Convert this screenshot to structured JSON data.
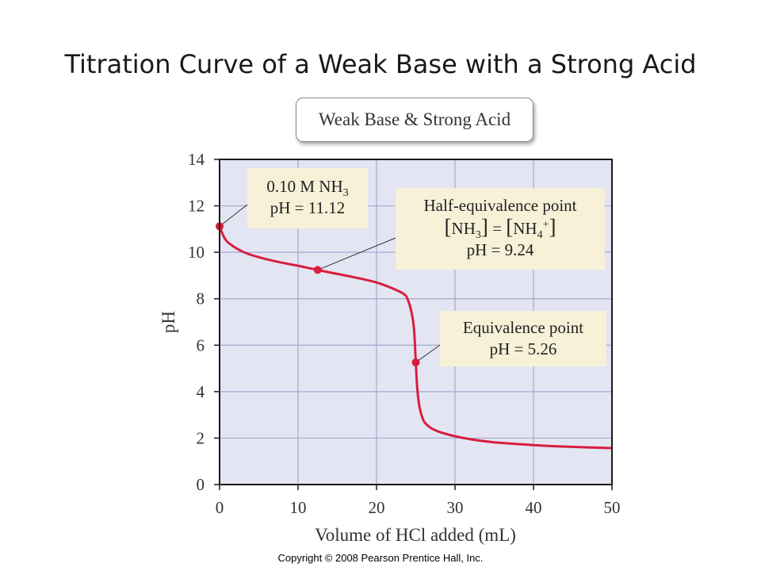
{
  "slide": {
    "title": "Titration Curve of a Weak Base with a Strong Acid",
    "badge": "Weak Base & Strong Acid",
    "copyright": "Copyright © 2008 Pearson Prentice Hall, Inc."
  },
  "annotations": {
    "start": {
      "line1_prefix": "0.10 M NH",
      "line1_sub": "3",
      "line2": "pH = 11.12"
    },
    "half": {
      "line1": "Half-equivalence point",
      "bracket_open": "[",
      "bracket_close": "]",
      "eq_left": "NH",
      "eq_left_sub": "3",
      "eq_mid": " = ",
      "eq_right": "NH",
      "eq_right_sub": "4",
      "eq_right_sup": "+",
      "line3": "pH = 9.24"
    },
    "equiv": {
      "line1": "Equivalence point",
      "line2": "pH = 5.26"
    }
  },
  "colors": {
    "curve": "#d81e3d",
    "plot_bg": "#e3e5f3",
    "grid": "#a5a9cc",
    "callout_bg": "#f7f1d8"
  },
  "chart_data": {
    "type": "line",
    "title": "",
    "xlabel": "Volume of HCl added (mL)",
    "ylabel": "pH",
    "xlim": [
      0,
      50
    ],
    "ylim": [
      0,
      14
    ],
    "xticks": [
      0,
      10,
      20,
      30,
      40,
      50
    ],
    "yticks": [
      0,
      2,
      4,
      6,
      8,
      10,
      12,
      14
    ],
    "grid": true,
    "series": [
      {
        "x": [
          0,
          0.5,
          1,
          2,
          3,
          4,
          5,
          6,
          8,
          10,
          12.5,
          15,
          17.5,
          20,
          22,
          23.5,
          24,
          24.5,
          24.8,
          25,
          25.2,
          25.5,
          26,
          26.5,
          27,
          28,
          30,
          32,
          35,
          40,
          45,
          50
        ],
        "y": [
          11.12,
          10.7,
          10.45,
          10.2,
          10.02,
          9.89,
          9.79,
          9.7,
          9.55,
          9.42,
          9.24,
          9.07,
          8.9,
          8.7,
          8.45,
          8.2,
          7.95,
          7.35,
          6.6,
          5.26,
          4.1,
          3.3,
          2.75,
          2.55,
          2.42,
          2.27,
          2.08,
          1.95,
          1.82,
          1.7,
          1.62,
          1.57
        ]
      }
    ],
    "highlighted_points": [
      {
        "x": 0,
        "y": 11.12
      },
      {
        "x": 12.5,
        "y": 9.24
      },
      {
        "x": 25,
        "y": 5.26
      }
    ]
  }
}
